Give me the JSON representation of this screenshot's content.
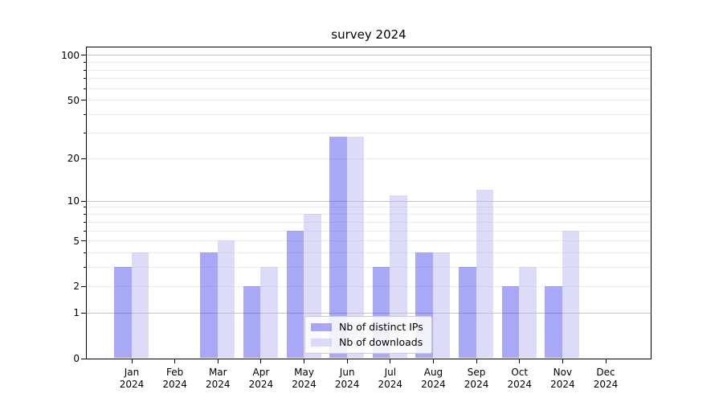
{
  "title": "survey 2024",
  "chart_data": {
    "type": "bar",
    "title": "survey 2024",
    "categories": [
      "Jan",
      "Feb",
      "Mar",
      "Apr",
      "May",
      "Jun",
      "Jul",
      "Aug",
      "Sep",
      "Oct",
      "Nov",
      "Dec"
    ],
    "year_label": "2024",
    "series": [
      {
        "name": "Nb of distinct IPs",
        "color": "#5252f0",
        "alpha": 0.5,
        "rendered_hex": "#a9a9f7",
        "values": [
          3,
          0,
          4,
          2,
          6,
          28,
          3,
          4,
          3,
          2,
          2,
          0
        ]
      },
      {
        "name": "Nb of downloads",
        "color": "#babaf2",
        "alpha": 0.5,
        "rendered_hex": "#dcdcf8",
        "values": [
          4,
          0,
          5,
          3,
          8,
          28,
          11,
          4,
          12,
          3,
          6,
          0
        ]
      }
    ],
    "xlabel": "",
    "ylabel": "",
    "scale": "log1p",
    "ylim": [
      0,
      114
    ],
    "y_ticks": [
      0,
      1,
      2,
      5,
      10,
      20,
      50,
      100
    ],
    "major_gridlines": [
      1,
      10,
      100
    ],
    "minor_gridlines": [
      2,
      3,
      4,
      5,
      6,
      7,
      8,
      9,
      20,
      30,
      40,
      50,
      60,
      70,
      80,
      90
    ],
    "grid": true,
    "legend_position": "lower-center",
    "colors": {
      "background": "#ffffff",
      "axis": "#000000",
      "text": "#000000",
      "major_grid": "#c3c3c3",
      "minor_grid": "#ebebeb",
      "legend_border": "#cccccc"
    }
  }
}
